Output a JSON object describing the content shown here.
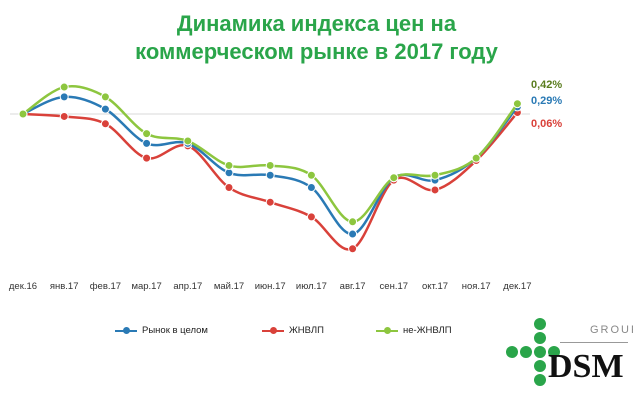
{
  "title": {
    "line1": "Динамика индекса цен на",
    "line2": "коммерческом рынке в 2017 году"
  },
  "colors": {
    "title": "#2aa54a",
    "market": "#2a7ab5",
    "zhnvlp": "#d9413a",
    "non_zhnvlp": "#8dc63f"
  },
  "chart_data": {
    "type": "line",
    "categories": [
      "дек.16",
      "янв.17",
      "фев.17",
      "мар.17",
      "апр.17",
      "май.17",
      "июн.17",
      "июл.17",
      "авг.17",
      "сен.17",
      "окт.17",
      "ноя.17",
      "дек.17"
    ],
    "ylim": [
      -5.6,
      1.4
    ],
    "grid": false,
    "legend_position": "bottom",
    "series": [
      {
        "name": "Рынок в целом",
        "color": "#2a7ab5",
        "values": [
          0,
          0.7,
          0.2,
          -1.2,
          -1.2,
          -2.4,
          -2.5,
          -3.0,
          -4.9,
          -2.6,
          -2.7,
          -1.8,
          0.29
        ],
        "end_label": "0,29%"
      },
      {
        "name": "ЖНВЛП",
        "color": "#d9413a",
        "values": [
          0,
          -0.1,
          -0.4,
          -1.8,
          -1.3,
          -3.0,
          -3.6,
          -4.2,
          -5.5,
          -2.7,
          -3.1,
          -1.9,
          0.06
        ],
        "end_label": "0,06%"
      },
      {
        "name": "не-ЖНВЛП",
        "color": "#8dc63f",
        "values": [
          0,
          1.1,
          0.7,
          -0.8,
          -1.1,
          -2.1,
          -2.1,
          -2.5,
          -4.4,
          -2.6,
          -2.5,
          -1.8,
          0.42
        ],
        "end_label": "0,42%"
      }
    ]
  },
  "logo": {
    "group": "GROUP",
    "name": "DSM"
  }
}
